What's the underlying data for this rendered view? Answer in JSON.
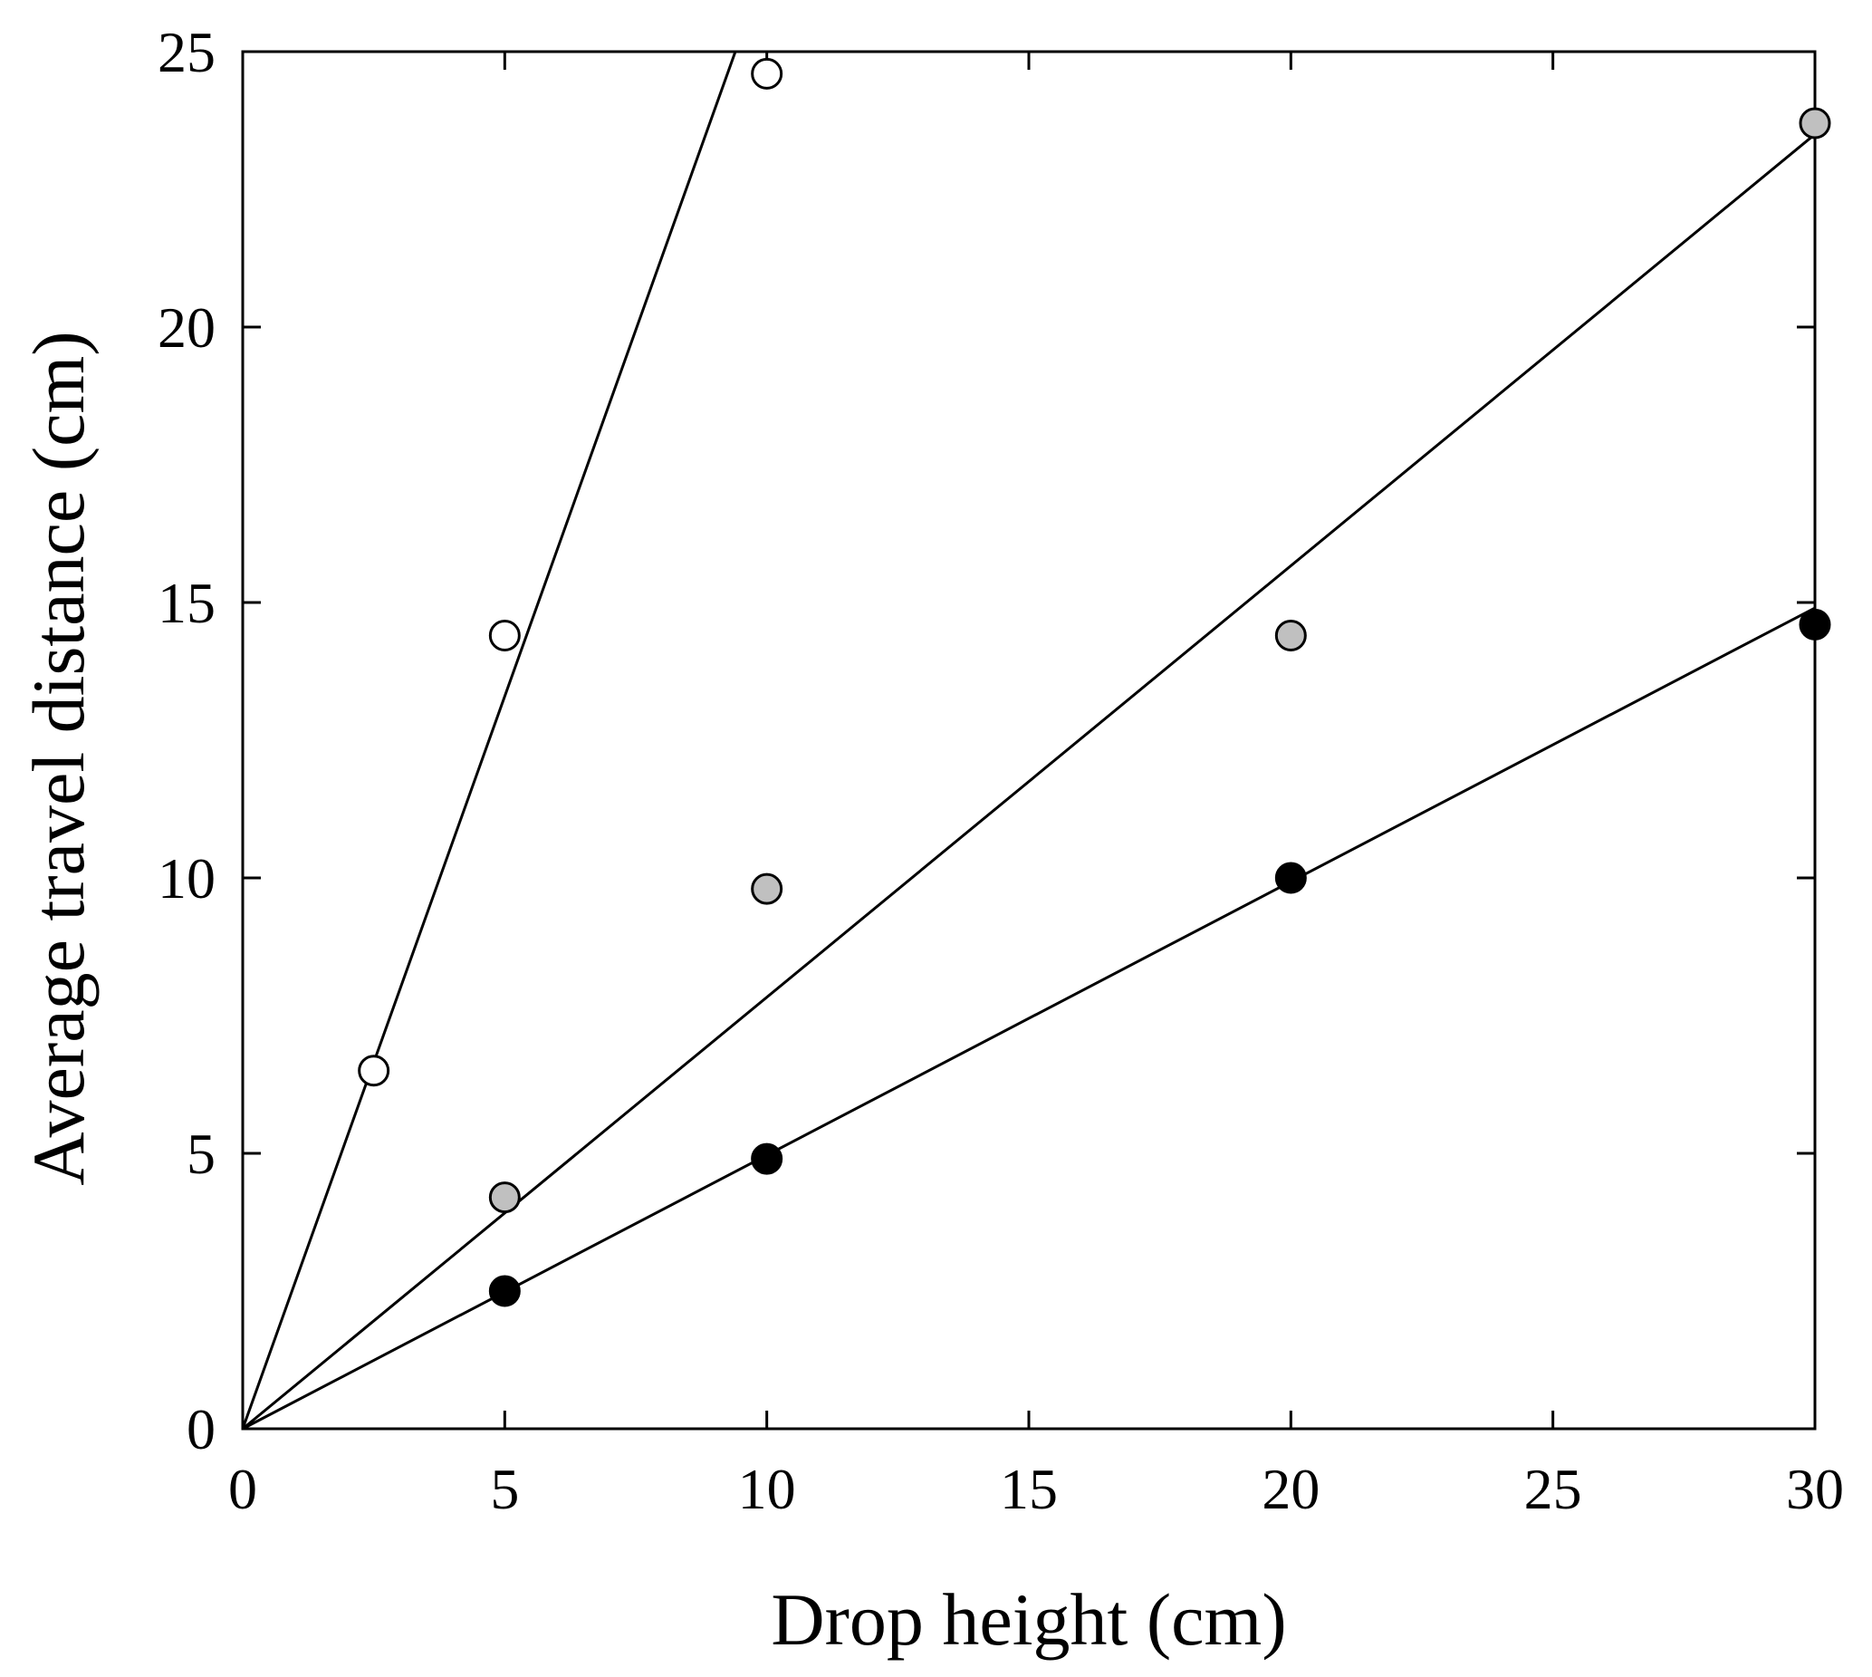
{
  "chart_data": {
    "type": "scatter",
    "title": "",
    "xlabel": "Drop height  (cm)",
    "ylabel": "Average travel distance  (cm)",
    "xlim": [
      0,
      30
    ],
    "ylim": [
      0,
      25
    ],
    "x_ticks": [
      "0",
      "5",
      "10",
      "15",
      "20",
      "25",
      "30"
    ],
    "y_ticks": [
      "0",
      "5",
      "10",
      "15",
      "20",
      "25"
    ],
    "grid": false,
    "legend": "none",
    "series": [
      {
        "marker_fill": "#ffffff",
        "points": [
          [
            2.5,
            6.5
          ],
          [
            5,
            14.4
          ],
          [
            10,
            24.6
          ]
        ],
        "fit_line": [
          [
            0,
            0
          ],
          [
            9.4,
            25
          ]
        ]
      },
      {
        "marker_fill": "#c0c0c0",
        "points": [
          [
            5,
            4.2
          ],
          [
            10,
            9.8
          ],
          [
            20,
            14.4
          ],
          [
            30,
            23.7
          ]
        ],
        "fit_line": [
          [
            0,
            0
          ],
          [
            30,
            23.5
          ]
        ]
      },
      {
        "marker_fill": "#000000",
        "points": [
          [
            5,
            2.5
          ],
          [
            10,
            4.9
          ],
          [
            20,
            10.0
          ],
          [
            30,
            14.6
          ]
        ],
        "fit_line": [
          [
            0,
            0
          ],
          [
            30,
            14.9
          ]
        ]
      }
    ]
  }
}
